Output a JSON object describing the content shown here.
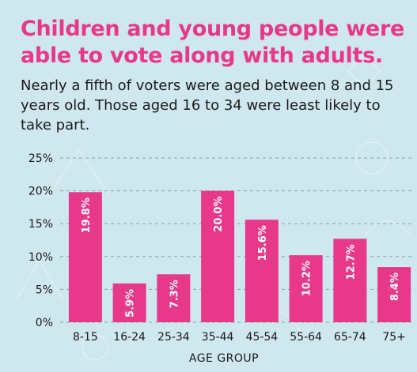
{
  "headline": "Children and young people were able to vote along with adults.",
  "subtitle": "Nearly a fifth of voters were aged between 8 and 15 years old. Those aged 16 to 34 were least likely to take part.",
  "colors": {
    "background": "#cfe7ee",
    "headline": "#e8388a",
    "bar": "#e8388a",
    "grid": "#8aa3ab"
  },
  "chart_data": {
    "type": "bar",
    "categories": [
      "8-15",
      "16-24",
      "25-34",
      "35-44",
      "45-54",
      "55-64",
      "65-74",
      "75+"
    ],
    "values": [
      19.8,
      5.9,
      7.3,
      20.0,
      15.6,
      10.2,
      12.7,
      8.4
    ],
    "value_labels": [
      "19.8%",
      "5.9%",
      "7.3%",
      "20.0%",
      "15.6%",
      "10.2%",
      "12.7%",
      "8.4%"
    ],
    "yticks": [
      "0%",
      "5%",
      "10%",
      "15%",
      "20%",
      "25%"
    ],
    "ylim": [
      0,
      25
    ],
    "xlabel": "AGE GROUP",
    "ylabel": "",
    "grid": true
  }
}
